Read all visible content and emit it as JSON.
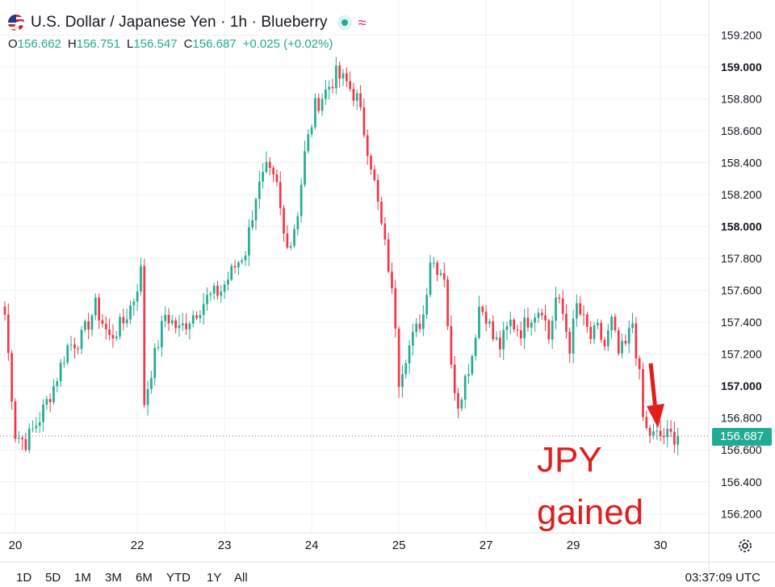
{
  "header": {
    "title": "U.S. Dollar / Japanese Yen · 1h · Blueberry",
    "flag_icon": "usd-jpy-flag-icon",
    "live_icon": "market-open-dot-icon",
    "wave_icon": "wave-icon",
    "ohlc": {
      "o_label": "O",
      "o_value": "156.662",
      "h_label": "H",
      "h_value": "156.751",
      "l_label": "L",
      "l_value": "156.547",
      "c_label": "C",
      "c_value": "156.687",
      "change": "+0.025 (+0.02%)"
    }
  },
  "chart_data": {
    "type": "candlestick",
    "title": "U.S. Dollar / Japanese Yen · 1h · Blueberry",
    "x_ticks": [
      {
        "label": "20",
        "bar": 3
      },
      {
        "label": "22",
        "bar": 38
      },
      {
        "label": "23",
        "bar": 63
      },
      {
        "label": "24",
        "bar": 88
      },
      {
        "label": "25",
        "bar": 113
      },
      {
        "label": "27",
        "bar": 138
      },
      {
        "label": "29",
        "bar": 163
      },
      {
        "label": "30",
        "bar": 188
      }
    ],
    "y_ticks": [
      "159.200",
      "159.000",
      "158.800",
      "158.600",
      "158.400",
      "158.200",
      "158.000",
      "157.800",
      "157.600",
      "157.400",
      "157.200",
      "157.000",
      "156.800",
      "156.600",
      "156.400",
      "156.200"
    ],
    "y_tick_values": [
      159.2,
      159.0,
      158.8,
      158.6,
      158.4,
      158.2,
      158.0,
      157.8,
      157.6,
      157.4,
      157.2,
      157.0,
      156.8,
      156.6,
      156.4,
      156.2
    ],
    "bold_ticks": [
      "159.000",
      "158.000",
      "157.000"
    ],
    "ylim": [
      156.08,
      159.42
    ],
    "bar_count": 194,
    "grid": true,
    "last_price": 156.687,
    "last_price_label": "156.687",
    "colors": {
      "up": "#22ab94",
      "down": "#f23645",
      "grid": "#eef0f4",
      "axis_text": "#131722",
      "last_line": "#707070"
    },
    "anchors": [
      [
        0,
        157.45
      ],
      [
        3,
        156.7
      ],
      [
        6,
        156.65
      ],
      [
        10,
        156.8
      ],
      [
        14,
        157.0
      ],
      [
        18,
        157.25
      ],
      [
        22,
        157.3
      ],
      [
        26,
        157.5
      ],
      [
        30,
        157.3
      ],
      [
        34,
        157.4
      ],
      [
        37,
        157.55
      ],
      [
        39,
        157.72
      ],
      [
        40,
        156.9
      ],
      [
        42,
        157.1
      ],
      [
        46,
        157.45
      ],
      [
        50,
        157.35
      ],
      [
        54,
        157.45
      ],
      [
        58,
        157.55
      ],
      [
        62,
        157.6
      ],
      [
        66,
        157.75
      ],
      [
        69,
        157.85
      ],
      [
        72,
        158.2
      ],
      [
        75,
        158.35
      ],
      [
        78,
        158.25
      ],
      [
        80,
        157.95
      ],
      [
        82,
        157.9
      ],
      [
        84,
        158.1
      ],
      [
        86,
        158.45
      ],
      [
        89,
        158.75
      ],
      [
        92,
        158.85
      ],
      [
        95,
        158.95
      ],
      [
        98,
        158.9
      ],
      [
        101,
        158.8
      ],
      [
        103,
        158.6
      ],
      [
        105,
        158.4
      ],
      [
        108,
        158.0
      ],
      [
        110,
        157.75
      ],
      [
        112,
        157.4
      ],
      [
        113,
        157.05
      ],
      [
        115,
        157.2
      ],
      [
        117,
        157.3
      ],
      [
        120,
        157.45
      ],
      [
        122,
        157.8
      ],
      [
        124,
        157.75
      ],
      [
        126,
        157.7
      ],
      [
        128,
        157.1
      ],
      [
        130,
        156.9
      ],
      [
        132,
        157.05
      ],
      [
        134,
        157.2
      ],
      [
        136,
        157.5
      ],
      [
        138,
        157.45
      ],
      [
        140,
        157.3
      ],
      [
        142,
        157.25
      ],
      [
        145,
        157.4
      ],
      [
        148,
        157.35
      ],
      [
        151,
        157.45
      ],
      [
        154,
        157.5
      ],
      [
        156,
        157.3
      ],
      [
        158,
        157.55
      ],
      [
        160,
        157.45
      ],
      [
        162,
        157.25
      ],
      [
        164,
        157.5
      ],
      [
        166,
        157.4
      ],
      [
        168,
        157.3
      ],
      [
        170,
        157.35
      ],
      [
        172,
        157.25
      ],
      [
        174,
        157.4
      ],
      [
        176,
        157.2
      ],
      [
        178,
        157.25
      ],
      [
        180,
        157.4
      ],
      [
        182,
        157.05
      ],
      [
        183,
        156.8
      ],
      [
        184,
        156.72
      ],
      [
        186,
        156.687
      ]
    ],
    "xlabel": "",
    "ylabel": ""
  },
  "annotations": {
    "line1": "JPY",
    "line2": "gained",
    "arrow_color": "#e11d1d"
  },
  "toolbar": {
    "timeframes": [
      "1D",
      "5D",
      "1M",
      "3M",
      "6M",
      "YTD",
      "1Y",
      "All"
    ],
    "clock": "03:37:09 UTC",
    "settings_icon": "settings-gear-icon"
  }
}
